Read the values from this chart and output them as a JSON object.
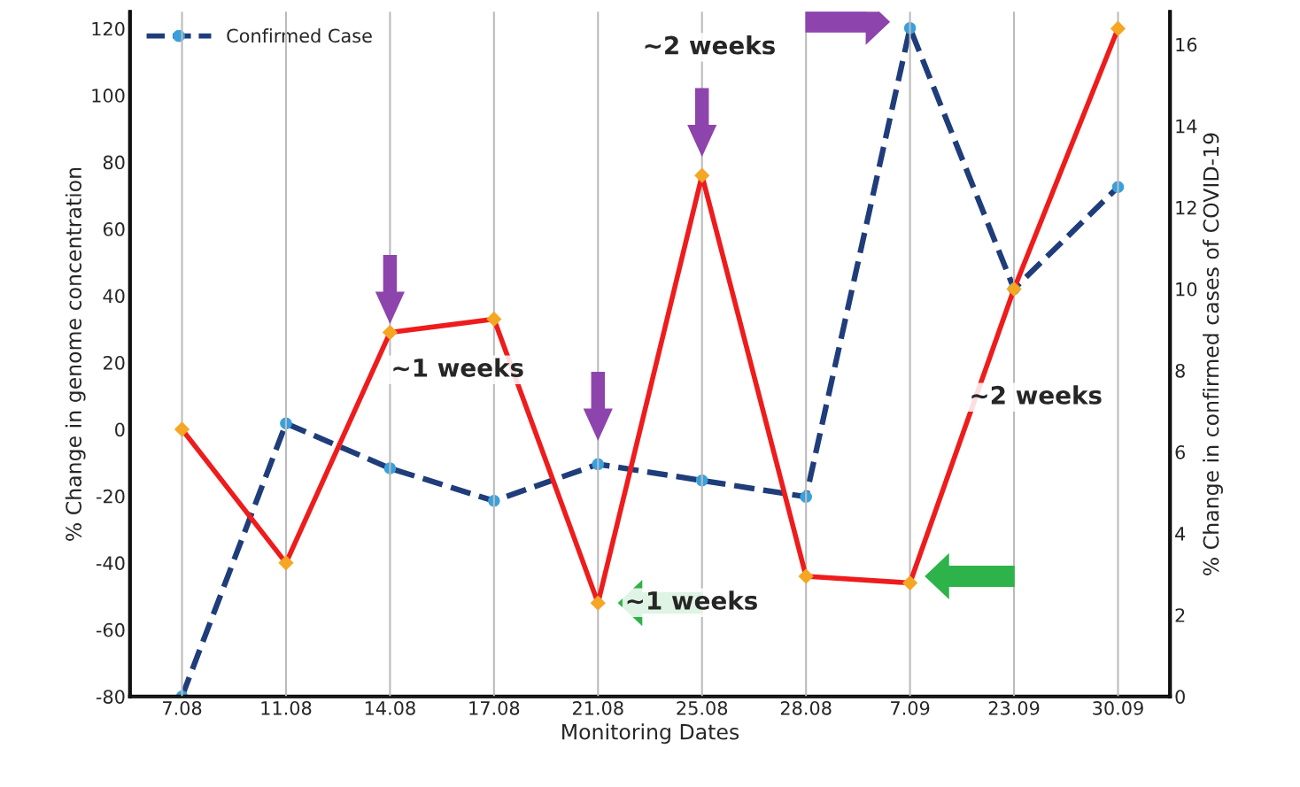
{
  "chart_data": {
    "type": "line",
    "xlabel": "Monitoring Dates",
    "ylabel": "% Change in genome concentration",
    "y2label": "% Change in confirmed cases of COVID-19",
    "categories": [
      "7.08",
      "11.08",
      "14.08",
      "17.08",
      "21.08",
      "25.08",
      "28.08",
      "7.09",
      "23.09",
      "30.09"
    ],
    "series": [
      {
        "color": "#ee1c1c",
        "values": [
          0,
          -40,
          29,
          33,
          -52,
          76,
          -44,
          -46,
          42,
          120
        ],
        "marker": "diamond",
        "line_style": "solid"
      },
      {
        "name": "Confirmed Case",
        "color": "#1f3d7a",
        "axis": "y2",
        "values": [
          0,
          6.7,
          5.6,
          4.8,
          5.7,
          5.3,
          4.9,
          16.4,
          10.0,
          12.5
        ],
        "marker": "circle",
        "line_style": "dashed"
      }
    ],
    "ylim": [
      -80,
      125
    ],
    "yticks": [
      -80,
      -60,
      -40,
      -20,
      0,
      20,
      40,
      60,
      80,
      100,
      120
    ],
    "y2lim": [
      0,
      16.8
    ],
    "y2ticks": [
      0,
      2,
      4,
      6,
      8,
      10,
      12,
      14,
      16
    ],
    "grid": "x",
    "legend": "top left",
    "annotations": [
      "~2 weeks",
      "~1 weeks",
      "~1 weeks",
      "~2 weeks"
    ]
  }
}
